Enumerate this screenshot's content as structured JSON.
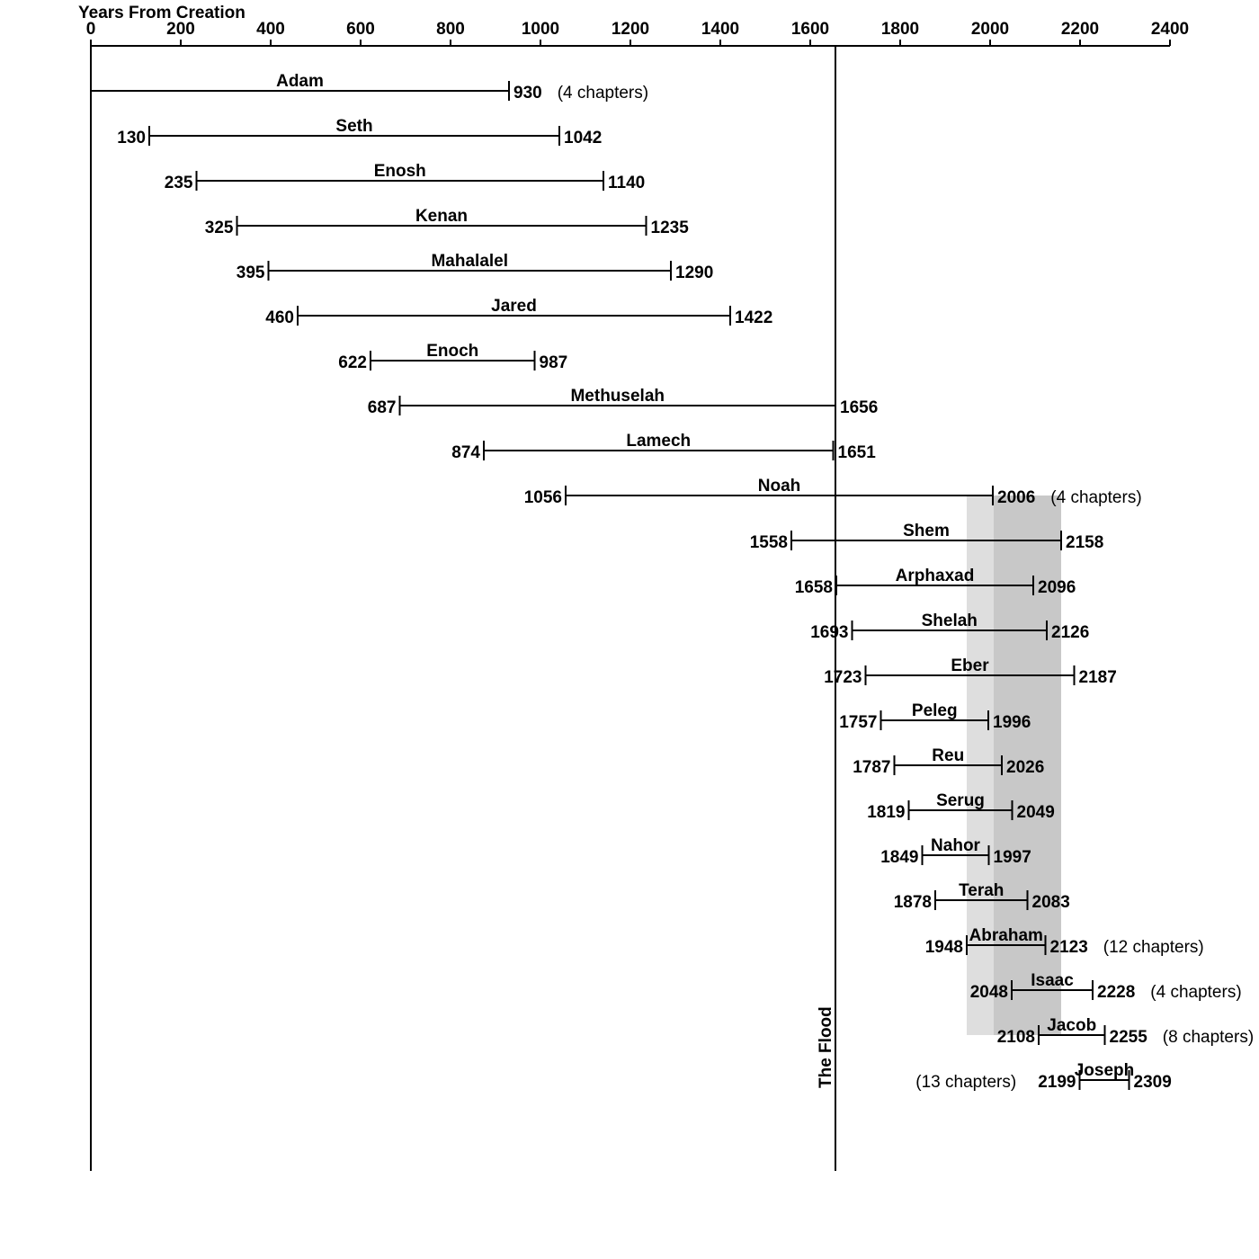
{
  "chart_data": {
    "type": "range-bar",
    "title": "",
    "xlabel": "Years From Creation",
    "ylabel": "",
    "xlim": [
      0,
      2400
    ],
    "x_ticks": [
      0,
      200,
      400,
      600,
      800,
      1000,
      1200,
      1400,
      1600,
      1800,
      2000,
      2200,
      2400
    ],
    "x_tick_labels": [
      "0",
      "200",
      "400",
      "600",
      "800",
      "1000",
      "1200",
      "1400",
      "1600",
      "1800",
      "2000",
      "2200",
      "2400"
    ],
    "grid": false,
    "reference_line": {
      "x": 1656,
      "label": "The Flood"
    },
    "shaded_bands": [
      {
        "from": 1948,
        "to": 2158,
        "color": "#c8c8c8"
      },
      {
        "from": 1948,
        "to": 2008,
        "color": "#dedede"
      }
    ],
    "bar_color": "#000000",
    "series": [
      {
        "name": "Adam",
        "start": 0,
        "end": 930,
        "start_label": "",
        "end_label": "930",
        "note": "(4 chapters)"
      },
      {
        "name": "Seth",
        "start": 130,
        "end": 1042,
        "start_label": "130",
        "end_label": "1042",
        "note": ""
      },
      {
        "name": "Enosh",
        "start": 235,
        "end": 1140,
        "start_label": "235",
        "end_label": "1140",
        "note": ""
      },
      {
        "name": "Kenan",
        "start": 325,
        "end": 1235,
        "start_label": "325",
        "end_label": "1235",
        "note": ""
      },
      {
        "name": "Mahalalel",
        "start": 395,
        "end": 1290,
        "start_label": "395",
        "end_label": "1290",
        "note": ""
      },
      {
        "name": "Jared",
        "start": 460,
        "end": 1422,
        "start_label": "460",
        "end_label": "1422",
        "note": ""
      },
      {
        "name": "Enoch",
        "start": 622,
        "end": 987,
        "start_label": "622",
        "end_label": "987",
        "note": ""
      },
      {
        "name": "Methuselah",
        "start": 687,
        "end": 1656,
        "start_label": "687",
        "end_label": "1656",
        "note": ""
      },
      {
        "name": "Lamech",
        "start": 874,
        "end": 1651,
        "start_label": "874",
        "end_label": "1651",
        "note": ""
      },
      {
        "name": "Noah",
        "start": 1056,
        "end": 2006,
        "start_label": "1056",
        "end_label": "2006",
        "note": "(4 chapters)"
      },
      {
        "name": "Shem",
        "start": 1558,
        "end": 2158,
        "start_label": "1558",
        "end_label": "2158",
        "note": ""
      },
      {
        "name": "Arphaxad",
        "start": 1658,
        "end": 2096,
        "start_label": "1658",
        "end_label": "2096",
        "note": ""
      },
      {
        "name": "Shelah",
        "start": 1693,
        "end": 2126,
        "start_label": "1693",
        "end_label": "2126",
        "note": ""
      },
      {
        "name": "Eber",
        "start": 1723,
        "end": 2187,
        "start_label": "1723",
        "end_label": "2187",
        "note": ""
      },
      {
        "name": "Peleg",
        "start": 1757,
        "end": 1996,
        "start_label": "1757",
        "end_label": "1996",
        "note": ""
      },
      {
        "name": "Reu",
        "start": 1787,
        "end": 2026,
        "start_label": "1787",
        "end_label": "2026",
        "note": ""
      },
      {
        "name": "Serug",
        "start": 1819,
        "end": 2049,
        "start_label": "1819",
        "end_label": "2049",
        "note": ""
      },
      {
        "name": "Nahor",
        "start": 1849,
        "end": 1997,
        "start_label": "1849",
        "end_label": "1997",
        "note": ""
      },
      {
        "name": "Terah",
        "start": 1878,
        "end": 2083,
        "start_label": "1878",
        "end_label": "2083",
        "note": ""
      },
      {
        "name": "Abraham",
        "start": 1948,
        "end": 2123,
        "start_label": "1948",
        "end_label": "2123",
        "note": "(12 chapters)"
      },
      {
        "name": "Isaac",
        "start": 2048,
        "end": 2228,
        "start_label": "2048",
        "end_label": "2228",
        "note": "(4 chapters)"
      },
      {
        "name": "Jacob",
        "start": 2108,
        "end": 2255,
        "start_label": "2108",
        "end_label": "2255",
        "note": "(8 chapters)"
      },
      {
        "name": "Joseph",
        "start": 2199,
        "end": 2309,
        "start_label": "2199",
        "end_label": "2309",
        "note": "(13 chapters)",
        "note_position": "left"
      }
    ]
  }
}
